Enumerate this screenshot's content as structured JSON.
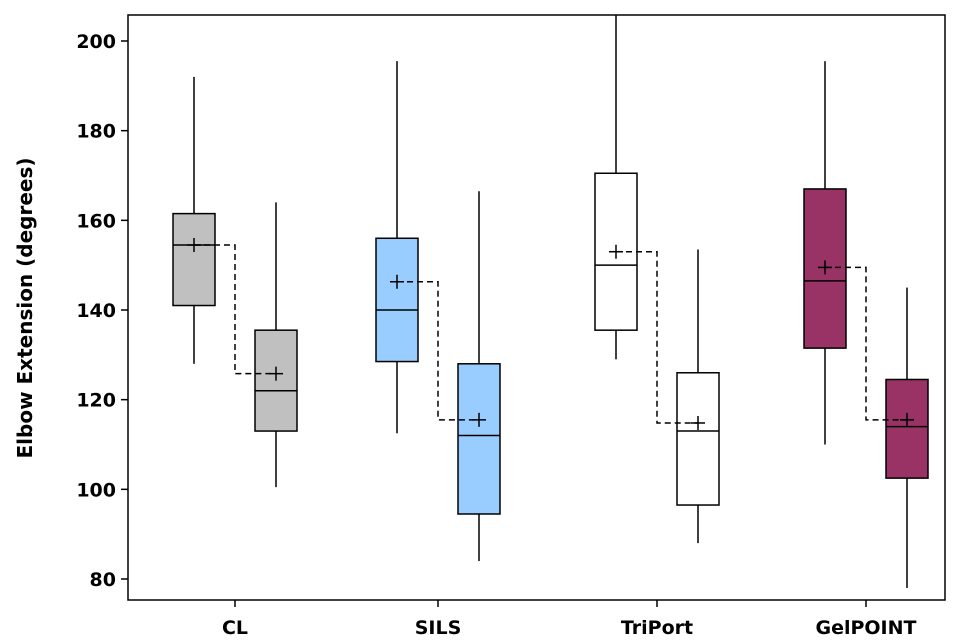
{
  "chart_data": {
    "type": "box",
    "title": "",
    "xlabel": "",
    "ylabel": "Elbow Extension (degrees)",
    "ylim": [
      76,
      206
    ],
    "yticks": [
      80,
      100,
      120,
      140,
      160,
      180,
      200
    ],
    "grid": false,
    "legend": "none",
    "categories": [
      "CL",
      "SILS",
      "TriPort",
      "GelPOINT"
    ],
    "groups": [
      {
        "category": "CL",
        "color": "#c0c0c0",
        "boxes": [
          {
            "min": 128,
            "q1": 141,
            "median": 154.5,
            "q3": 161.5,
            "max": 192,
            "mean": 154.5
          },
          {
            "min": 100.5,
            "q1": 113,
            "median": 122,
            "q3": 135.5,
            "max": 164,
            "mean": 125.8
          }
        ]
      },
      {
        "category": "SILS",
        "color": "#99ccff",
        "boxes": [
          {
            "min": 112.5,
            "q1": 128.5,
            "median": 140,
            "q3": 156,
            "max": 195.5,
            "mean": 146.3
          },
          {
            "min": 84,
            "q1": 94.5,
            "median": 112,
            "q3": 128,
            "max": 166.5,
            "mean": 115.5
          }
        ]
      },
      {
        "category": "TriPort",
        "color": "#ffffff",
        "boxes": [
          {
            "min": 129,
            "q1": 135.5,
            "median": 150,
            "q3": 170.5,
            "max": 206,
            "mean": 153
          },
          {
            "min": 88,
            "q1": 96.5,
            "median": 113,
            "q3": 126,
            "max": 153.5,
            "mean": 114.8
          }
        ]
      },
      {
        "category": "GelPOINT",
        "color": "#993366",
        "boxes": [
          {
            "min": 110,
            "q1": 131.5,
            "median": 146.5,
            "q3": 167,
            "max": 195.5,
            "mean": 149.5
          },
          {
            "min": 78,
            "q1": 102.5,
            "median": 114,
            "q3": 124.5,
            "max": 145,
            "mean": 115.5
          }
        ]
      }
    ]
  }
}
